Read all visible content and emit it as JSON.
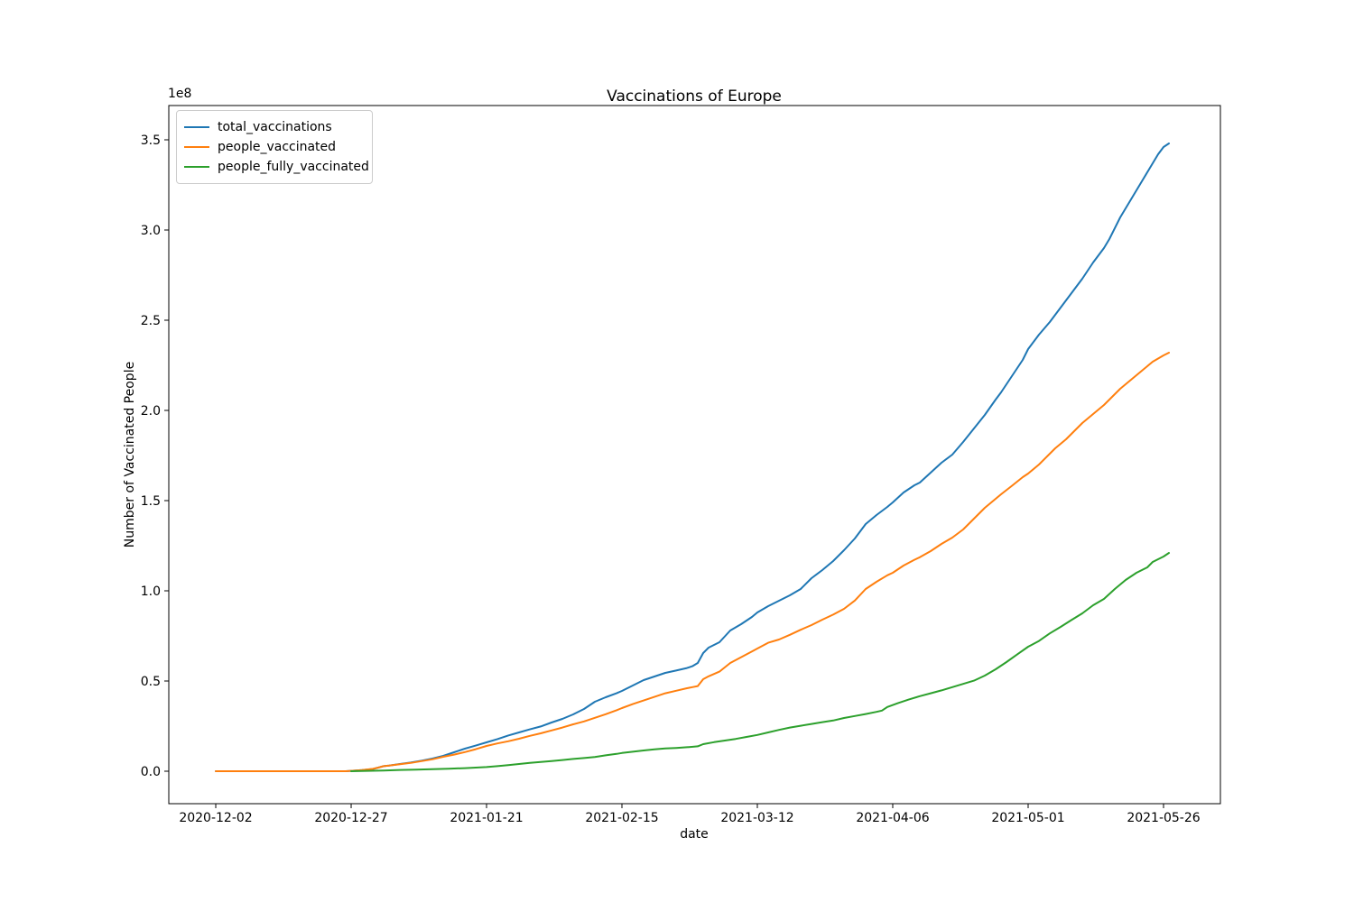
{
  "chart_data": {
    "type": "line",
    "title": "Vaccinations of Europe",
    "xlabel": "date",
    "ylabel": "Number of Vaccinated People",
    "y_offset_label": "1e8",
    "y_unit": "1e8 people",
    "x_unit": "days since 2020-12-02",
    "grid": false,
    "legend_position": "upper left",
    "xlim": [
      -8.67,
      185.5
    ],
    "ylim": [
      -0.18,
      3.69
    ],
    "x_ticks": [
      {
        "pos": 0,
        "label": "2020-12-02"
      },
      {
        "pos": 25,
        "label": "2020-12-27"
      },
      {
        "pos": 50,
        "label": "2021-01-21"
      },
      {
        "pos": 75,
        "label": "2021-02-15"
      },
      {
        "pos": 100,
        "label": "2021-03-12"
      },
      {
        "pos": 125,
        "label": "2021-04-06"
      },
      {
        "pos": 150,
        "label": "2021-05-01"
      },
      {
        "pos": 175,
        "label": "2021-05-26"
      }
    ],
    "y_ticks": [
      {
        "pos": 0.0,
        "label": "0.0"
      },
      {
        "pos": 0.5,
        "label": "0.5"
      },
      {
        "pos": 1.0,
        "label": "1.0"
      },
      {
        "pos": 1.5,
        "label": "1.5"
      },
      {
        "pos": 2.0,
        "label": "2.0"
      },
      {
        "pos": 2.5,
        "label": "2.5"
      },
      {
        "pos": 3.0,
        "label": "3.0"
      },
      {
        "pos": 3.5,
        "label": "3.5"
      }
    ],
    "series": [
      {
        "name": "total_vaccinations",
        "color": "#1f77b4",
        "points": [
          [
            0,
            0
          ],
          [
            3,
            0
          ],
          [
            6,
            0
          ],
          [
            9,
            0
          ],
          [
            12,
            0
          ],
          [
            15,
            0
          ],
          [
            18,
            0
          ],
          [
            21,
            0
          ],
          [
            24,
            0
          ],
          [
            25,
            0.002
          ],
          [
            27,
            0.006
          ],
          [
            29,
            0.012
          ],
          [
            30,
            0.02
          ],
          [
            31,
            0.028
          ],
          [
            32,
            0.031
          ],
          [
            34,
            0.04
          ],
          [
            36,
            0.048
          ],
          [
            38,
            0.058
          ],
          [
            40,
            0.07
          ],
          [
            42,
            0.085
          ],
          [
            44,
            0.105
          ],
          [
            46,
            0.125
          ],
          [
            48,
            0.142
          ],
          [
            50,
            0.16
          ],
          [
            52,
            0.178
          ],
          [
            54,
            0.198
          ],
          [
            56,
            0.215
          ],
          [
            58,
            0.232
          ],
          [
            60,
            0.248
          ],
          [
            62,
            0.27
          ],
          [
            64,
            0.29
          ],
          [
            66,
            0.315
          ],
          [
            68,
            0.345
          ],
          [
            70,
            0.385
          ],
          [
            72,
            0.41
          ],
          [
            74,
            0.432
          ],
          [
            75,
            0.445
          ],
          [
            77,
            0.475
          ],
          [
            79,
            0.505
          ],
          [
            81,
            0.525
          ],
          [
            83,
            0.545
          ],
          [
            85,
            0.558
          ],
          [
            87,
            0.572
          ],
          [
            88,
            0.582
          ],
          [
            89,
            0.6
          ],
          [
            90,
            0.655
          ],
          [
            91,
            0.685
          ],
          [
            93,
            0.715
          ],
          [
            95,
            0.78
          ],
          [
            97,
            0.815
          ],
          [
            99,
            0.855
          ],
          [
            100,
            0.88
          ],
          [
            102,
            0.915
          ],
          [
            104,
            0.945
          ],
          [
            106,
            0.975
          ],
          [
            108,
            1.01
          ],
          [
            110,
            1.07
          ],
          [
            112,
            1.115
          ],
          [
            114,
            1.165
          ],
          [
            116,
            1.225
          ],
          [
            118,
            1.29
          ],
          [
            120,
            1.37
          ],
          [
            122,
            1.42
          ],
          [
            124,
            1.465
          ],
          [
            125,
            1.49
          ],
          [
            127,
            1.545
          ],
          [
            129,
            1.585
          ],
          [
            130,
            1.6
          ],
          [
            132,
            1.655
          ],
          [
            134,
            1.71
          ],
          [
            136,
            1.755
          ],
          [
            138,
            1.825
          ],
          [
            140,
            1.9
          ],
          [
            142,
            1.975
          ],
          [
            144,
            2.06
          ],
          [
            145,
            2.1
          ],
          [
            147,
            2.19
          ],
          [
            149,
            2.28
          ],
          [
            150,
            2.34
          ],
          [
            152,
            2.42
          ],
          [
            154,
            2.49
          ],
          [
            155,
            2.53
          ],
          [
            157,
            2.61
          ],
          [
            159,
            2.69
          ],
          [
            160,
            2.73
          ],
          [
            162,
            2.82
          ],
          [
            164,
            2.9
          ],
          [
            165,
            2.95
          ],
          [
            167,
            3.07
          ],
          [
            169,
            3.17
          ],
          [
            171,
            3.27
          ],
          [
            173,
            3.37
          ],
          [
            174,
            3.42
          ],
          [
            175,
            3.46
          ],
          [
            176,
            3.48
          ]
        ]
      },
      {
        "name": "people_vaccinated",
        "color": "#ff7f0e",
        "points": [
          [
            0,
            0
          ],
          [
            3,
            0
          ],
          [
            6,
            0
          ],
          [
            9,
            0
          ],
          [
            12,
            0
          ],
          [
            15,
            0
          ],
          [
            18,
            0
          ],
          [
            21,
            0
          ],
          [
            24,
            0
          ],
          [
            25,
            0.002
          ],
          [
            27,
            0.006
          ],
          [
            29,
            0.013
          ],
          [
            30,
            0.02
          ],
          [
            31,
            0.028
          ],
          [
            32,
            0.031
          ],
          [
            34,
            0.039
          ],
          [
            36,
            0.046
          ],
          [
            38,
            0.056
          ],
          [
            40,
            0.066
          ],
          [
            42,
            0.08
          ],
          [
            44,
            0.092
          ],
          [
            46,
            0.106
          ],
          [
            48,
            0.122
          ],
          [
            50,
            0.14
          ],
          [
            52,
            0.154
          ],
          [
            54,
            0.166
          ],
          [
            56,
            0.18
          ],
          [
            58,
            0.196
          ],
          [
            60,
            0.21
          ],
          [
            62,
            0.226
          ],
          [
            64,
            0.242
          ],
          [
            66,
            0.26
          ],
          [
            68,
            0.276
          ],
          [
            70,
            0.296
          ],
          [
            72,
            0.316
          ],
          [
            74,
            0.338
          ],
          [
            75,
            0.35
          ],
          [
            77,
            0.372
          ],
          [
            79,
            0.392
          ],
          [
            81,
            0.412
          ],
          [
            83,
            0.432
          ],
          [
            85,
            0.446
          ],
          [
            87,
            0.46
          ],
          [
            88,
            0.466
          ],
          [
            89,
            0.472
          ],
          [
            90,
            0.51
          ],
          [
            91,
            0.526
          ],
          [
            93,
            0.552
          ],
          [
            95,
            0.6
          ],
          [
            97,
            0.632
          ],
          [
            99,
            0.664
          ],
          [
            100,
            0.68
          ],
          [
            102,
            0.712
          ],
          [
            104,
            0.73
          ],
          [
            106,
            0.756
          ],
          [
            108,
            0.784
          ],
          [
            110,
            0.81
          ],
          [
            112,
            0.84
          ],
          [
            114,
            0.868
          ],
          [
            116,
            0.9
          ],
          [
            118,
            0.946
          ],
          [
            120,
            1.01
          ],
          [
            122,
            1.05
          ],
          [
            124,
            1.086
          ],
          [
            125,
            1.1
          ],
          [
            127,
            1.14
          ],
          [
            129,
            1.172
          ],
          [
            130,
            1.186
          ],
          [
            132,
            1.22
          ],
          [
            134,
            1.26
          ],
          [
            136,
            1.295
          ],
          [
            138,
            1.34
          ],
          [
            140,
            1.4
          ],
          [
            142,
            1.46
          ],
          [
            144,
            1.51
          ],
          [
            145,
            1.535
          ],
          [
            147,
            1.582
          ],
          [
            149,
            1.63
          ],
          [
            150,
            1.65
          ],
          [
            152,
            1.7
          ],
          [
            154,
            1.76
          ],
          [
            155,
            1.79
          ],
          [
            157,
            1.84
          ],
          [
            159,
            1.9
          ],
          [
            160,
            1.93
          ],
          [
            162,
            1.98
          ],
          [
            164,
            2.03
          ],
          [
            165,
            2.06
          ],
          [
            167,
            2.12
          ],
          [
            169,
            2.17
          ],
          [
            171,
            2.22
          ],
          [
            173,
            2.27
          ],
          [
            175,
            2.305
          ],
          [
            176,
            2.32
          ]
        ]
      },
      {
        "name": "people_fully_vaccinated",
        "color": "#2ca02c",
        "points": [
          [
            25,
            0
          ],
          [
            28,
            0.002
          ],
          [
            31,
            0.004
          ],
          [
            34,
            0.007
          ],
          [
            37,
            0.009
          ],
          [
            40,
            0.011
          ],
          [
            43,
            0.014
          ],
          [
            46,
            0.017
          ],
          [
            48,
            0.02
          ],
          [
            50,
            0.023
          ],
          [
            52,
            0.028
          ],
          [
            54,
            0.034
          ],
          [
            56,
            0.04
          ],
          [
            58,
            0.046
          ],
          [
            60,
            0.051
          ],
          [
            62,
            0.056
          ],
          [
            64,
            0.062
          ],
          [
            66,
            0.068
          ],
          [
            68,
            0.073
          ],
          [
            70,
            0.079
          ],
          [
            72,
            0.088
          ],
          [
            74,
            0.096
          ],
          [
            75,
            0.101
          ],
          [
            77,
            0.108
          ],
          [
            79,
            0.115
          ],
          [
            81,
            0.121
          ],
          [
            83,
            0.126
          ],
          [
            85,
            0.129
          ],
          [
            87,
            0.133
          ],
          [
            89,
            0.138
          ],
          [
            90,
            0.15
          ],
          [
            92,
            0.161
          ],
          [
            94,
            0.17
          ],
          [
            96,
            0.179
          ],
          [
            98,
            0.19
          ],
          [
            100,
            0.201
          ],
          [
            102,
            0.215
          ],
          [
            104,
            0.229
          ],
          [
            106,
            0.242
          ],
          [
            108,
            0.252
          ],
          [
            110,
            0.262
          ],
          [
            112,
            0.272
          ],
          [
            114,
            0.281
          ],
          [
            116,
            0.295
          ],
          [
            118,
            0.306
          ],
          [
            120,
            0.317
          ],
          [
            122,
            0.329
          ],
          [
            123,
            0.336
          ],
          [
            124,
            0.356
          ],
          [
            126,
            0.378
          ],
          [
            128,
            0.398
          ],
          [
            130,
            0.416
          ],
          [
            132,
            0.432
          ],
          [
            134,
            0.448
          ],
          [
            136,
            0.466
          ],
          [
            138,
            0.484
          ],
          [
            140,
            0.502
          ],
          [
            142,
            0.53
          ],
          [
            144,
            0.565
          ],
          [
            146,
            0.605
          ],
          [
            148,
            0.648
          ],
          [
            150,
            0.69
          ],
          [
            152,
            0.722
          ],
          [
            154,
            0.764
          ],
          [
            156,
            0.8
          ],
          [
            158,
            0.838
          ],
          [
            160,
            0.875
          ],
          [
            162,
            0.92
          ],
          [
            164,
            0.955
          ],
          [
            166,
            1.01
          ],
          [
            168,
            1.06
          ],
          [
            170,
            1.1
          ],
          [
            172,
            1.13
          ],
          [
            173,
            1.16
          ],
          [
            175,
            1.19
          ],
          [
            176,
            1.21
          ]
        ]
      }
    ]
  }
}
